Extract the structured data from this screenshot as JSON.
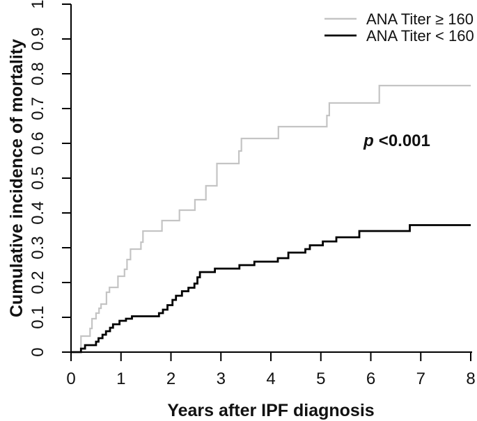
{
  "chart_data": {
    "type": "line",
    "variant": "step-cumulative-incidence",
    "title": "",
    "xlabel": "Years after IPF diagnosis",
    "ylabel": "Cumulative incidence of mortality",
    "xlim": [
      0,
      8
    ],
    "ylim": [
      0,
      1
    ],
    "x_ticks": [
      "0",
      "1",
      "2",
      "3",
      "4",
      "5",
      "6",
      "7",
      "8"
    ],
    "y_ticks": [
      "0",
      "0.1",
      "0.2",
      "0.3",
      "0.4",
      "0.5",
      "0.6",
      "0.7",
      "0.8",
      "0.9",
      "1"
    ],
    "grid": false,
    "legend_position": "top-right",
    "annotation": {
      "prefix": "p",
      "rest": "<0.001"
    },
    "axis_color": "#000000",
    "series": [
      {
        "name": "ANA Titer ≥ 160",
        "color": "#c4c4c4",
        "line_width": 2.2,
        "start": [
          0,
          0
        ],
        "steps": [
          [
            0.2,
            0.046
          ],
          [
            0.38,
            0.068
          ],
          [
            0.42,
            0.096
          ],
          [
            0.5,
            0.112
          ],
          [
            0.56,
            0.126
          ],
          [
            0.6,
            0.138
          ],
          [
            0.71,
            0.172
          ],
          [
            0.77,
            0.186
          ],
          [
            0.94,
            0.218
          ],
          [
            1.07,
            0.238
          ],
          [
            1.12,
            0.266
          ],
          [
            1.19,
            0.296
          ],
          [
            1.4,
            0.316
          ],
          [
            1.44,
            0.348
          ],
          [
            1.82,
            0.378
          ],
          [
            2.17,
            0.408
          ],
          [
            2.48,
            0.438
          ],
          [
            2.7,
            0.478
          ],
          [
            2.92,
            0.542
          ],
          [
            3.36,
            0.578
          ],
          [
            3.41,
            0.614
          ],
          [
            4.15,
            0.648
          ],
          [
            5.12,
            0.68
          ],
          [
            5.17,
            0.716
          ],
          [
            6.17,
            0.766
          ]
        ],
        "end_x": 8,
        "final_value": 0.766
      },
      {
        "name": "ANA Titer < 160",
        "color": "#000000",
        "line_width": 2.8,
        "start": [
          0,
          0
        ],
        "steps": [
          [
            0.2,
            0.01
          ],
          [
            0.28,
            0.02
          ],
          [
            0.5,
            0.03
          ],
          [
            0.55,
            0.04
          ],
          [
            0.63,
            0.05
          ],
          [
            0.7,
            0.06
          ],
          [
            0.78,
            0.07
          ],
          [
            0.84,
            0.08
          ],
          [
            0.97,
            0.09
          ],
          [
            1.1,
            0.096
          ],
          [
            1.22,
            0.103
          ],
          [
            1.76,
            0.112
          ],
          [
            1.84,
            0.122
          ],
          [
            1.93,
            0.135
          ],
          [
            2.03,
            0.15
          ],
          [
            2.1,
            0.162
          ],
          [
            2.22,
            0.175
          ],
          [
            2.35,
            0.185
          ],
          [
            2.47,
            0.197
          ],
          [
            2.53,
            0.215
          ],
          [
            2.58,
            0.23
          ],
          [
            2.88,
            0.24
          ],
          [
            3.37,
            0.25
          ],
          [
            3.67,
            0.26
          ],
          [
            4.14,
            0.27
          ],
          [
            4.35,
            0.286
          ],
          [
            4.69,
            0.296
          ],
          [
            4.78,
            0.307
          ],
          [
            5.04,
            0.318
          ],
          [
            5.31,
            0.33
          ],
          [
            5.77,
            0.348
          ],
          [
            6.78,
            0.365
          ]
        ],
        "end_x": 8,
        "final_value": 0.365
      }
    ]
  }
}
